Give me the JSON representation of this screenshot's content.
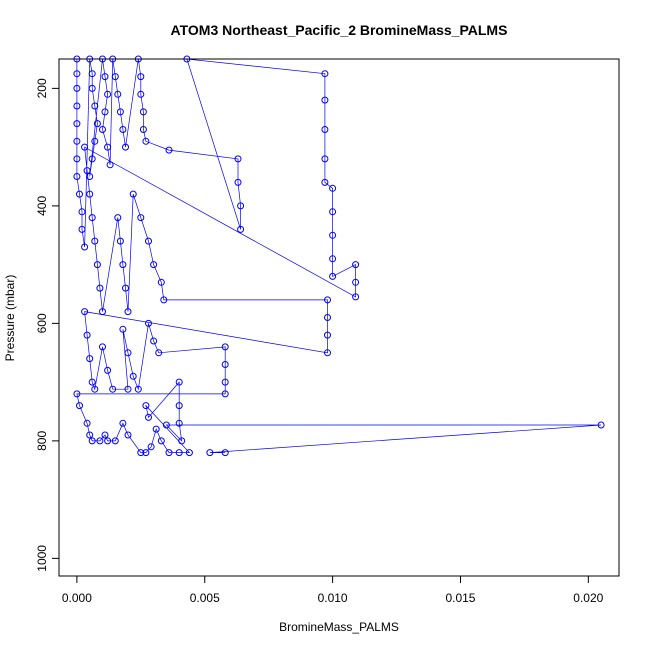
{
  "chart_data": {
    "type": "scatter",
    "title": "ATOM3 Northeast_Pacific_2 BromineMass_PALMS",
    "xlabel": "BromineMass_PALMS",
    "ylabel": "Pressure (mbar)",
    "xlim": [
      -0.0007,
      0.0212
    ],
    "ylim": [
      1030,
      150
    ],
    "y_reversed": true,
    "x_ticks": [
      0.0,
      0.005,
      0.01,
      0.015,
      0.02
    ],
    "x_tick_labels": [
      "0.000",
      "0.005",
      "0.010",
      "0.015",
      "0.020"
    ],
    "y_ticks": [
      200,
      400,
      600,
      800,
      1000
    ],
    "y_tick_labels": [
      "200",
      "400",
      "600",
      "800",
      "1000"
    ],
    "grid": false,
    "series_color": "#0000ff",
    "marker": "open-circle",
    "connected": true,
    "series": [
      {
        "points": [
          [
            0.0,
            150
          ],
          [
            0.0,
            175
          ],
          [
            0.0,
            200
          ],
          [
            0.0,
            230
          ],
          [
            0.0,
            260
          ],
          [
            0.0,
            290
          ],
          [
            0.0,
            320
          ],
          [
            0.0,
            350
          ],
          [
            0.0001,
            380
          ],
          [
            0.0002,
            410
          ],
          [
            0.0002,
            440
          ],
          [
            0.0003,
            470
          ],
          [
            0.0005,
            150
          ],
          [
            0.0006,
            175
          ],
          [
            0.0006,
            200
          ],
          [
            0.0007,
            230
          ],
          [
            0.0008,
            260
          ],
          [
            0.0007,
            290
          ],
          [
            0.0006,
            320
          ],
          [
            0.0005,
            350
          ],
          [
            0.001,
            150
          ],
          [
            0.0011,
            180
          ],
          [
            0.0012,
            210
          ],
          [
            0.0011,
            240
          ],
          [
            0.001,
            270
          ],
          [
            0.0012,
            300
          ],
          [
            0.0013,
            330
          ],
          [
            0.0014,
            150
          ],
          [
            0.0015,
            180
          ],
          [
            0.0016,
            210
          ],
          [
            0.0017,
            240
          ],
          [
            0.0018,
            270
          ],
          [
            0.0019,
            300
          ],
          [
            0.0024,
            150
          ],
          [
            0.0025,
            180
          ],
          [
            0.0025,
            210
          ],
          [
            0.0026,
            240
          ],
          [
            0.0026,
            270
          ],
          [
            0.0027,
            290
          ],
          [
            0.0036,
            305
          ],
          [
            0.0063,
            320
          ],
          [
            0.0063,
            360
          ],
          [
            0.0064,
            400
          ],
          [
            0.0064,
            440
          ],
          [
            0.0043,
            150
          ],
          [
            0.0097,
            175
          ],
          [
            0.0097,
            220
          ],
          [
            0.0097,
            270
          ],
          [
            0.0097,
            320
          ],
          [
            0.0097,
            360
          ],
          [
            0.01,
            370
          ],
          [
            0.01,
            410
          ],
          [
            0.01,
            450
          ],
          [
            0.01,
            490
          ],
          [
            0.01,
            520
          ],
          [
            0.0109,
            500
          ],
          [
            0.0109,
            530
          ],
          [
            0.0109,
            555
          ],
          [
            0.0003,
            300
          ],
          [
            0.0004,
            340
          ],
          [
            0.0005,
            380
          ],
          [
            0.0006,
            420
          ],
          [
            0.0007,
            460
          ],
          [
            0.0008,
            500
          ],
          [
            0.0009,
            540
          ],
          [
            0.001,
            580
          ],
          [
            0.0016,
            420
          ],
          [
            0.0017,
            460
          ],
          [
            0.0018,
            500
          ],
          [
            0.0019,
            540
          ],
          [
            0.002,
            580
          ],
          [
            0.0022,
            380
          ],
          [
            0.0025,
            420
          ],
          [
            0.0028,
            460
          ],
          [
            0.003,
            500
          ],
          [
            0.0033,
            530
          ],
          [
            0.0034,
            560
          ],
          [
            0.0098,
            560
          ],
          [
            0.0098,
            590
          ],
          [
            0.0098,
            620
          ],
          [
            0.0098,
            650
          ],
          [
            0.0003,
            580
          ],
          [
            0.0004,
            620
          ],
          [
            0.0005,
            660
          ],
          [
            0.0006,
            700
          ],
          [
            0.0007,
            712
          ],
          [
            0.001,
            640
          ],
          [
            0.0012,
            680
          ],
          [
            0.0014,
            712
          ],
          [
            0.002,
            712
          ],
          [
            0.0018,
            610
          ],
          [
            0.002,
            650
          ],
          [
            0.0022,
            690
          ],
          [
            0.0024,
            712
          ],
          [
            0.0028,
            600
          ],
          [
            0.003,
            630
          ],
          [
            0.0032,
            650
          ],
          [
            0.0058,
            640
          ],
          [
            0.0058,
            670
          ],
          [
            0.0058,
            700
          ],
          [
            0.0058,
            720
          ],
          [
            0.0,
            720
          ],
          [
            0.0001,
            740
          ],
          [
            0.0004,
            770
          ],
          [
            0.0005,
            790
          ],
          [
            0.0006,
            800
          ],
          [
            0.0009,
            800
          ],
          [
            0.0011,
            790
          ],
          [
            0.0012,
            800
          ],
          [
            0.0015,
            800
          ],
          [
            0.0018,
            770
          ],
          [
            0.002,
            790
          ],
          [
            0.0025,
            820
          ],
          [
            0.0027,
            820
          ],
          [
            0.0029,
            810
          ],
          [
            0.0031,
            780
          ],
          [
            0.0033,
            800
          ],
          [
            0.0036,
            820
          ],
          [
            0.004,
            820
          ],
          [
            0.0044,
            820
          ],
          [
            0.0027,
            740
          ],
          [
            0.0028,
            760
          ],
          [
            0.004,
            700
          ],
          [
            0.004,
            740
          ],
          [
            0.004,
            770
          ],
          [
            0.0041,
            800
          ],
          [
            0.0035,
            773
          ],
          [
            0.0205,
            773
          ],
          [
            0.0052,
            820
          ],
          [
            0.0058,
            820
          ]
        ]
      }
    ]
  }
}
